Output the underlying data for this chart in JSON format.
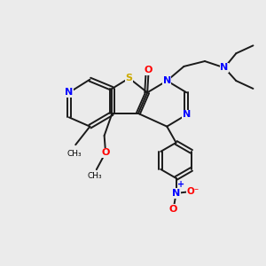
{
  "background_color": "#ebebeb",
  "atom_colors": {
    "C": "#000000",
    "N": "#0000ff",
    "O": "#ff0000",
    "S": "#ccaa00",
    "H": "#000000"
  },
  "bond_color": "#1a1a1a",
  "bond_width": 1.4,
  "dbo": 0.07,
  "figsize": [
    3.0,
    3.0
  ],
  "dpi": 100,
  "xlim": [
    0,
    10
  ],
  "ylim": [
    0,
    10
  ]
}
